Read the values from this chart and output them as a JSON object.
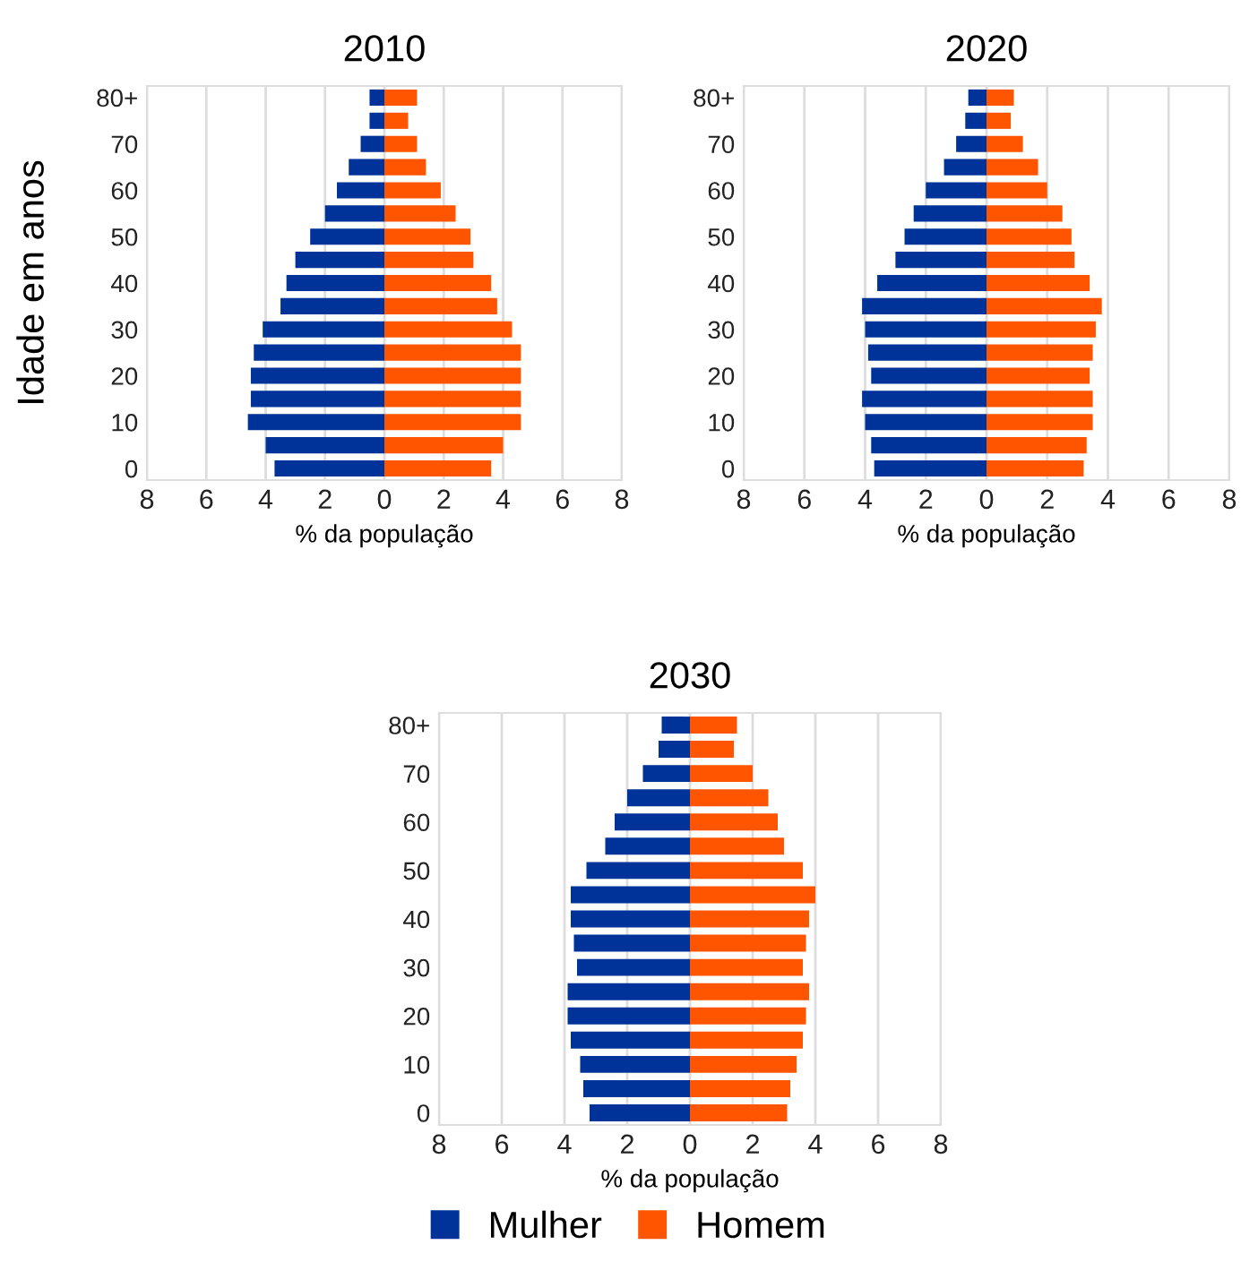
{
  "chart_data": [
    {
      "type": "bar",
      "orientation": "horizontal",
      "stacked": true,
      "title": "2010",
      "xlabel": "% da população",
      "ylabel": "Idade em anos",
      "categories": [
        "80+",
        null,
        "70",
        null,
        "60",
        null,
        "50",
        null,
        "40",
        null,
        "30",
        null,
        "20",
        null,
        "10",
        null,
        "0"
      ],
      "series": [
        {
          "color": "#003399",
          "values": [
            -0.5,
            -0.5,
            -0.8,
            -1.2,
            -1.6,
            -2.0,
            -2.5,
            -3.0,
            -3.3,
            -3.5,
            -4.1,
            -4.4,
            -4.5,
            -4.5,
            -4.6,
            -4.0,
            -3.7
          ]
        },
        {
          "color": "#ff5500",
          "values": [
            1.1,
            0.8,
            1.1,
            1.4,
            1.9,
            2.4,
            2.9,
            3.0,
            3.6,
            3.8,
            4.3,
            4.6,
            4.6,
            4.6,
            4.6,
            4.0,
            3.6
          ]
        }
      ],
      "xlim": [
        -8,
        8
      ],
      "xticks": [
        {
          "value": -8,
          "label": "8"
        },
        {
          "value": -6,
          "label": "6"
        },
        {
          "value": -4,
          "label": "4"
        },
        {
          "value": -2,
          "label": "2"
        },
        0,
        2,
        4,
        6,
        8
      ],
      "grid": "x"
    },
    {
      "type": "bar",
      "orientation": "horizontal",
      "stacked": true,
      "title": "2020",
      "xlabel": "% da população",
      "categories": [
        "80+",
        null,
        "70",
        null,
        "60",
        null,
        "50",
        null,
        "40",
        null,
        "30",
        null,
        "20",
        null,
        "10",
        null,
        "0"
      ],
      "series": [
        {
          "color": "#003399",
          "values": [
            -0.6,
            -0.7,
            -1.0,
            -1.4,
            -2.0,
            -2.4,
            -2.7,
            -3.0,
            -3.6,
            -4.1,
            -4.0,
            -3.9,
            -3.8,
            -4.1,
            -4.0,
            -3.8,
            -3.7
          ]
        },
        {
          "color": "#ff5500",
          "values": [
            0.9,
            0.8,
            1.2,
            1.7,
            2.0,
            2.5,
            2.8,
            2.9,
            3.4,
            3.8,
            3.6,
            3.5,
            3.4,
            3.5,
            3.5,
            3.3,
            3.2
          ]
        }
      ],
      "xlim": [
        -8,
        8
      ],
      "xticks": [
        {
          "value": -8,
          "label": "8"
        },
        {
          "value": -6,
          "label": "6"
        },
        {
          "value": -4,
          "label": "4"
        },
        {
          "value": -2,
          "label": "2"
        },
        0,
        2,
        4,
        6,
        8
      ],
      "grid": "x"
    },
    {
      "type": "bar",
      "orientation": "horizontal",
      "stacked": true,
      "title": "2030",
      "xlabel": "% da população",
      "categories": [
        "80+",
        null,
        "70",
        null,
        "60",
        null,
        "50",
        null,
        "40",
        null,
        "30",
        null,
        "20",
        null,
        "10",
        null,
        "0"
      ],
      "series": [
        {
          "name": "Mulher",
          "color": "#003399",
          "values": [
            -0.9,
            -1.0,
            -1.5,
            -2.0,
            -2.4,
            -2.7,
            -3.3,
            -3.8,
            -3.8,
            -3.7,
            -3.6,
            -3.9,
            -3.9,
            -3.8,
            -3.5,
            -3.4,
            -3.2
          ]
        },
        {
          "name": "Homem",
          "color": "#ff5500",
          "values": [
            1.5,
            1.4,
            2.0,
            2.5,
            2.8,
            3.0,
            3.6,
            4.0,
            3.8,
            3.7,
            3.6,
            3.8,
            3.7,
            3.6,
            3.4,
            3.2,
            3.1
          ]
        }
      ],
      "xlim": [
        -8,
        8
      ],
      "xticks": [
        {
          "value": -8,
          "label": "8"
        },
        {
          "value": -6,
          "label": "6"
        },
        {
          "value": -4,
          "label": "4"
        },
        {
          "value": -2,
          "label": "2"
        },
        0,
        2,
        4,
        6,
        8
      ],
      "grid": "x",
      "legend": "bottom"
    }
  ]
}
